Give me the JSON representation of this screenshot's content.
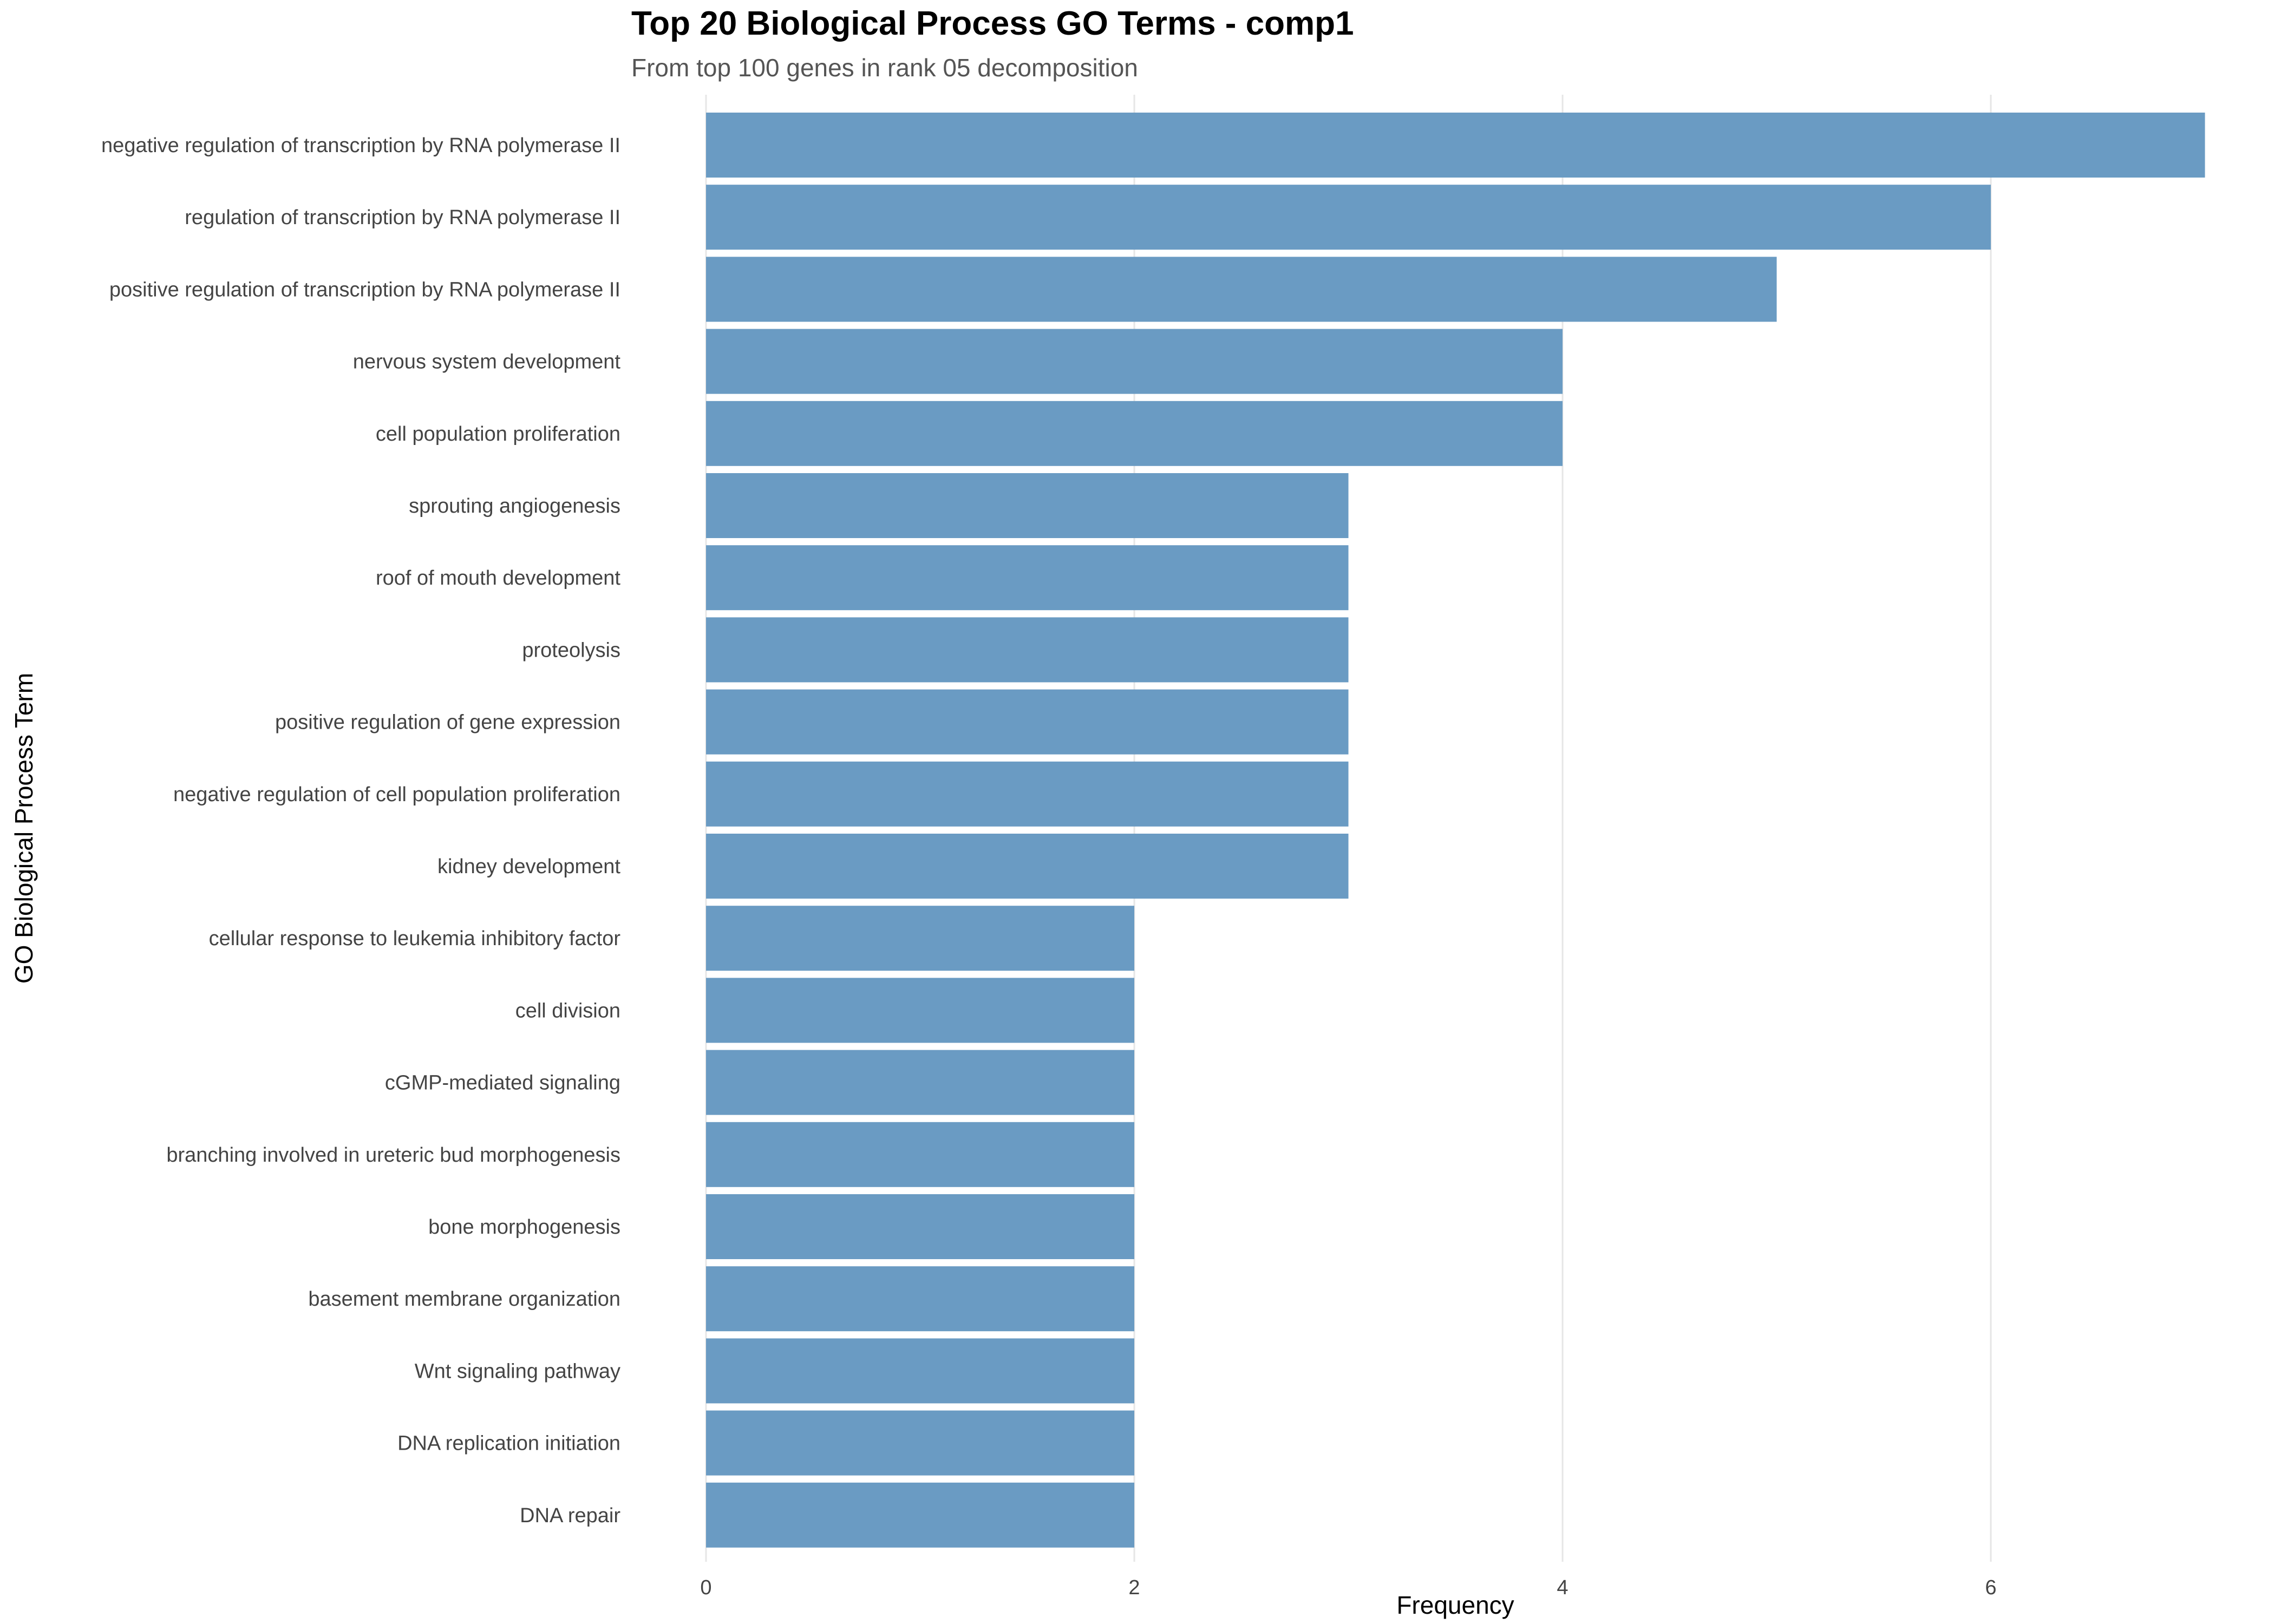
{
  "chart_data": {
    "type": "bar",
    "orientation": "horizontal",
    "title": "Top 20 Biological Process GO Terms - comp1",
    "subtitle": "From top 100 genes in rank 05 decomposition",
    "xlabel": "Frequency",
    "ylabel": "GO Biological Process Term",
    "xlim": [
      0,
      7
    ],
    "xticks": [
      "0",
      "2",
      "4",
      "6"
    ],
    "grid": true,
    "bar_color": "#6a9bc3",
    "categories": [
      "negative regulation of transcription by RNA polymerase II",
      "regulation of transcription by RNA polymerase II",
      "positive regulation of transcription by RNA polymerase II",
      "nervous system development",
      "cell population proliferation",
      "sprouting angiogenesis",
      "roof of mouth development",
      "proteolysis",
      "positive regulation of gene expression",
      "negative regulation of cell population proliferation",
      "kidney development",
      "cellular response to leukemia inhibitory factor",
      "cell division",
      "cGMP-mediated signaling",
      "branching involved in ureteric bud morphogenesis",
      "bone morphogenesis",
      "basement membrane organization",
      "Wnt signaling pathway",
      "DNA replication initiation",
      "DNA repair"
    ],
    "values": [
      7,
      6,
      5,
      4,
      4,
      3,
      3,
      3,
      3,
      3,
      3,
      2,
      2,
      2,
      2,
      2,
      2,
      2,
      2,
      2
    ]
  }
}
